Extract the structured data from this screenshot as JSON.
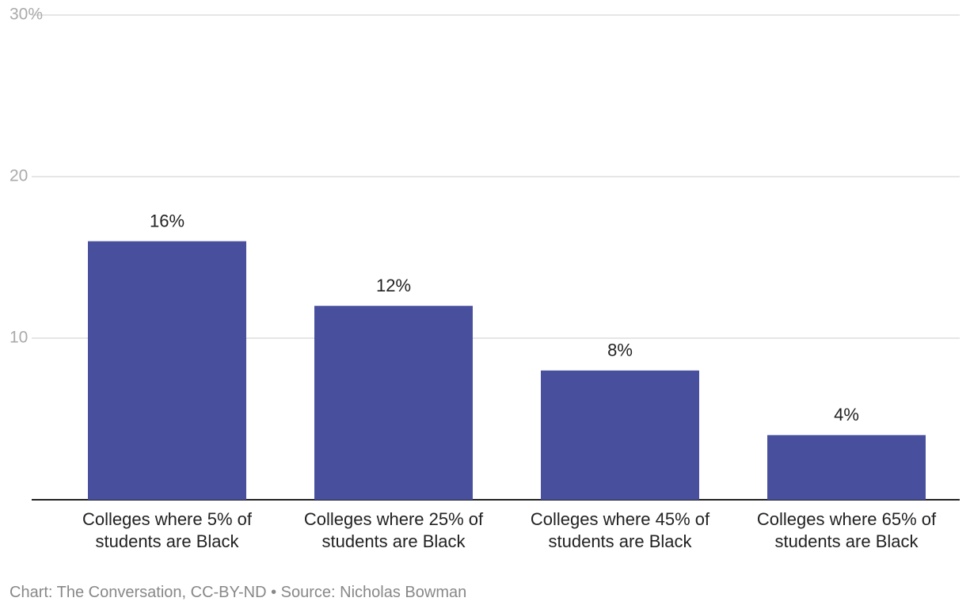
{
  "chart_data": {
    "type": "bar",
    "categories": [
      "Colleges where 5% of students are Black",
      "Colleges where 25% of students are Black",
      "Colleges where 45% of students are Black",
      "Colleges where 65% of students are Black"
    ],
    "values": [
      16,
      12,
      8,
      4
    ],
    "value_labels": [
      "16%",
      "12%",
      "8%",
      "4%"
    ],
    "color": "#48509e",
    "ylim": [
      0,
      30
    ],
    "yticks": [
      10,
      20,
      {
        "value": 30,
        "label": "30%"
      }
    ],
    "grid": true,
    "footer": "Chart: The Conversation, CC-BY-ND • Source: Nicholas Bowman"
  }
}
